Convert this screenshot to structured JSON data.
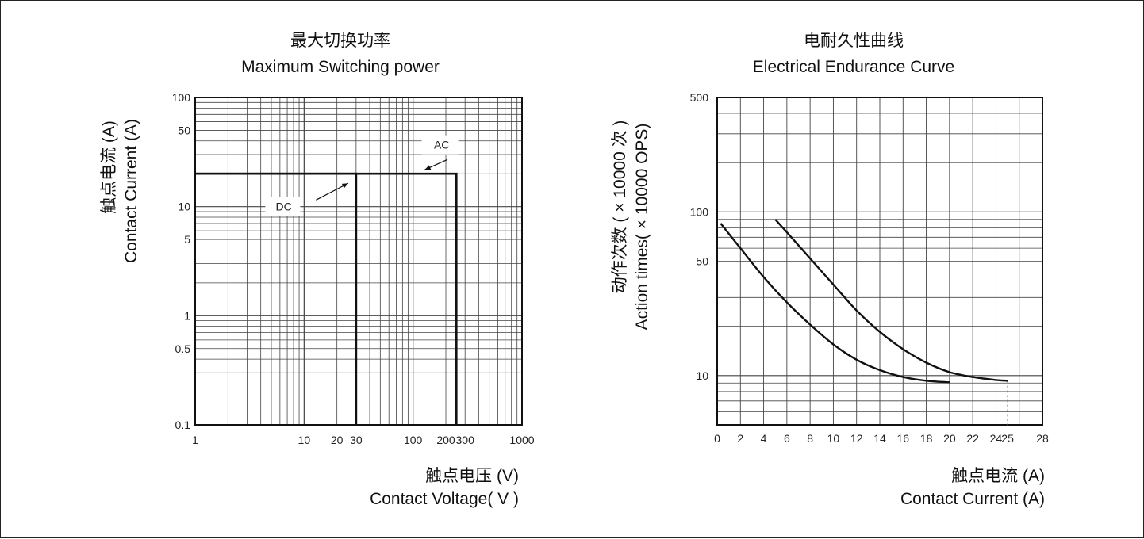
{
  "chart_data": [
    {
      "type": "line",
      "title_cn": "最大切换功率",
      "title": "Maximum Switching power",
      "xlabel_cn": "触点电压 (V)",
      "xlabel": "Contact Voltage( V )",
      "ylabel_cn": "触点电流 (A)",
      "ylabel": "Contact Current (A)",
      "x_scale": "log",
      "y_scale": "log",
      "xlim": [
        1,
        1000
      ],
      "ylim": [
        0.1,
        100
      ],
      "x_tick_labels": [
        "1",
        "10",
        "20",
        "30",
        "100",
        "200",
        "300",
        "1000"
      ],
      "x_ticks": [
        1,
        10,
        20,
        30,
        100,
        200,
        300,
        1000
      ],
      "y_tick_labels": [
        "0.1",
        "0.5",
        "1",
        "5",
        "10",
        "50",
        "100"
      ],
      "y_ticks": [
        0.1,
        0.5,
        1,
        5,
        10,
        50,
        100
      ],
      "grid": true,
      "series": [
        {
          "name": "DC",
          "points": [
            [
              1,
              20
            ],
            [
              30,
              20
            ],
            [
              30,
              0.1
            ]
          ]
        },
        {
          "name": "AC",
          "points": [
            [
              1,
              20
            ],
            [
              250,
              20
            ],
            [
              250,
              0.1
            ]
          ]
        }
      ],
      "annotations": [
        {
          "text": "DC",
          "points_to": [
            30,
            20
          ]
        },
        {
          "text": "AC",
          "points_to": [
            250,
            20
          ]
        }
      ]
    },
    {
      "type": "line",
      "title_cn": "电耐久性曲线",
      "title": "Electrical Endurance Curve",
      "xlabel_cn": "触点电流 (A)",
      "xlabel": "Contact Current (A)",
      "ylabel_cn": "动作次数 ( × 10000 次 )",
      "ylabel": "Action times( × 10000 OPS)",
      "x_scale": "linear",
      "y_scale": "log",
      "xlim": [
        0,
        28
      ],
      "ylim": [
        5,
        500
      ],
      "x_tick_labels": [
        "0",
        "2",
        "4",
        "6",
        "8",
        "10",
        "12",
        "14",
        "16",
        "18",
        "20",
        "22",
        "24",
        "25",
        "28"
      ],
      "x_ticks": [
        0,
        2,
        4,
        6,
        8,
        10,
        12,
        14,
        16,
        18,
        20,
        22,
        24,
        25,
        28
      ],
      "y_tick_labels": [
        "10",
        "50",
        "100",
        "500"
      ],
      "y_ticks": [
        10,
        50,
        100,
        500
      ],
      "grid": true,
      "series": [
        {
          "points": [
            [
              0.3,
              85
            ],
            [
              2,
              60
            ],
            [
              4,
              40
            ],
            [
              6,
              28
            ],
            [
              8,
              20.5
            ],
            [
              10,
              15.5
            ],
            [
              12,
              12.5
            ],
            [
              14,
              10.8
            ],
            [
              16,
              9.8
            ],
            [
              18,
              9.3
            ],
            [
              20,
              9.1
            ]
          ]
        },
        {
          "points": [
            [
              5,
              90
            ],
            [
              6,
              75
            ],
            [
              8,
              52
            ],
            [
              10,
              36
            ],
            [
              12,
              25
            ],
            [
              14,
              18.5
            ],
            [
              16,
              14.5
            ],
            [
              18,
              12
            ],
            [
              20,
              10.5
            ],
            [
              22,
              9.8
            ],
            [
              24,
              9.4
            ],
            [
              25,
              9.3
            ]
          ]
        }
      ]
    }
  ]
}
